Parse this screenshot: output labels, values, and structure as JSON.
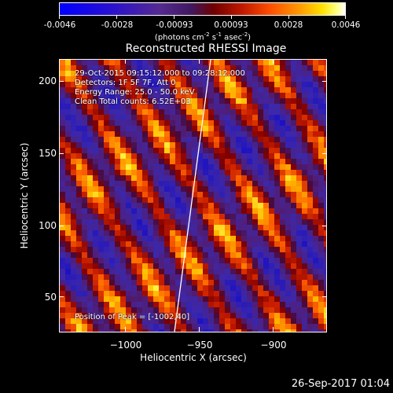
{
  "colorbar": {
    "tick_labels": [
      "-0.0046",
      "-0.0028",
      "-0.00093",
      "0.00093",
      "0.0028",
      "0.0046"
    ],
    "units_prefix": "(photons cm",
    "units_sup1": "-2",
    "units_mid1": " s",
    "units_sup2": "-1",
    "units_mid2": " asec",
    "units_sup3": "-2",
    "units_suffix": ")",
    "colormap": [
      "#0000ff",
      "#552a90",
      "#700000",
      "#ff5000",
      "#ffe000",
      "#ffffff"
    ]
  },
  "title": "Reconstructed RHESSI Image",
  "info": {
    "line1": "29-Oct-2015 09:15:12.000 to 09:28:12.000",
    "line2": "Detectors: 1F 5F 7F, Att 0",
    "line3": "Energy Range: 25.0 - 50.0 keV",
    "line4": "Clean    Total counts: 6.52E+03",
    "peak": "Position of Peak = [-1002,40]"
  },
  "axes": {
    "xlabel": "Heliocentric X (arcsec)",
    "ylabel": "Heliocentric Y (arcsec)",
    "x_ticks": [
      "−1000",
      "−950",
      "−900"
    ],
    "y_ticks": [
      "50",
      "100",
      "150",
      "200"
    ],
    "xlim": [
      -1035,
      -856
    ],
    "ylim": [
      27,
      219
    ]
  },
  "timestamp": "26-Sep-2017 01:04"
}
